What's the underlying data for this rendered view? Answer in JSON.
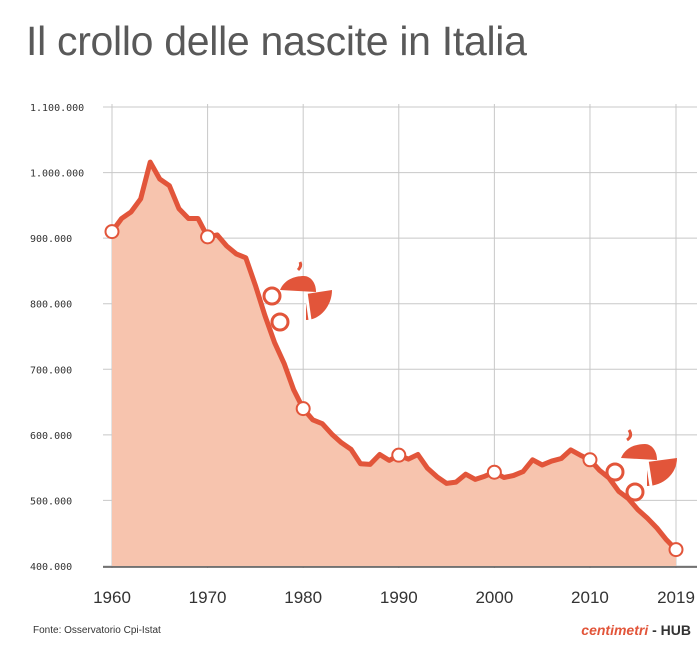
{
  "title": "Il crollo delle nascite in Italia",
  "source": "Fonte: Osservatorio Cpi-Istat",
  "brand": {
    "name": "centimetri",
    "suffix": " - HUB"
  },
  "colors": {
    "line": "#e2553a",
    "area": "#f7c4ae",
    "grid": "#c8c8c8"
  },
  "icons": [
    "baby-carriage-icon",
    "baby-carriage-icon"
  ],
  "chart_data": {
    "type": "area",
    "title": "Il crollo delle nascite in Italia",
    "xlabel": "",
    "ylabel": "",
    "xlim": [
      1960,
      2019
    ],
    "ylim": [
      400000,
      1100000
    ],
    "x_ticks": [
      1960,
      1970,
      1980,
      1990,
      2000,
      2010,
      2019
    ],
    "y_ticks": [
      400000,
      500000,
      600000,
      700000,
      800000,
      900000,
      1000000,
      1100000
    ],
    "y_tick_labels": [
      "400.000",
      "500.000",
      "600.000",
      "700.000",
      "800.000",
      "900.000",
      "1.000.000",
      "1.100.000"
    ],
    "grid": true,
    "series": [
      {
        "x": [
          1960,
          1961,
          1962,
          1963,
          1964,
          1965,
          1966,
          1967,
          1968,
          1969,
          1970,
          1971,
          1972,
          1973,
          1974,
          1975,
          1976,
          1977,
          1978,
          1979,
          1980,
          1981,
          1982,
          1983,
          1984,
          1985,
          1986,
          1987,
          1988,
          1989,
          1990,
          1991,
          1992,
          1993,
          1994,
          1995,
          1996,
          1997,
          1998,
          1999,
          2000,
          2001,
          2002,
          2003,
          2004,
          2005,
          2006,
          2007,
          2008,
          2009,
          2010,
          2011,
          2012,
          2013,
          2014,
          2015,
          2016,
          2017,
          2018,
          2019
        ],
        "values": [
          910000,
          930000,
          940000,
          960000,
          1016000,
          990000,
          980000,
          945000,
          930000,
          930000,
          902000,
          905000,
          888000,
          876000,
          870000,
          828000,
          782000,
          741000,
          709000,
          669000,
          640000,
          623000,
          617000,
          601000,
          588000,
          578000,
          556000,
          555000,
          570000,
          561000,
          569000,
          563000,
          570000,
          549000,
          536000,
          526000,
          528000,
          540000,
          532000,
          537000,
          543000,
          535000,
          538000,
          544000,
          562000,
          554000,
          560000,
          564000,
          577000,
          569000,
          562000,
          546000,
          534000,
          514000,
          503000,
          486000,
          473000,
          458000,
          440000,
          425000
        ],
        "markers": [
          [
            1960,
            910000
          ],
          [
            1970,
            902000
          ],
          [
            1980,
            640000
          ],
          [
            1990,
            569000
          ],
          [
            2000,
            543000
          ],
          [
            2010,
            562000
          ],
          [
            2019,
            425000
          ]
        ]
      }
    ]
  }
}
